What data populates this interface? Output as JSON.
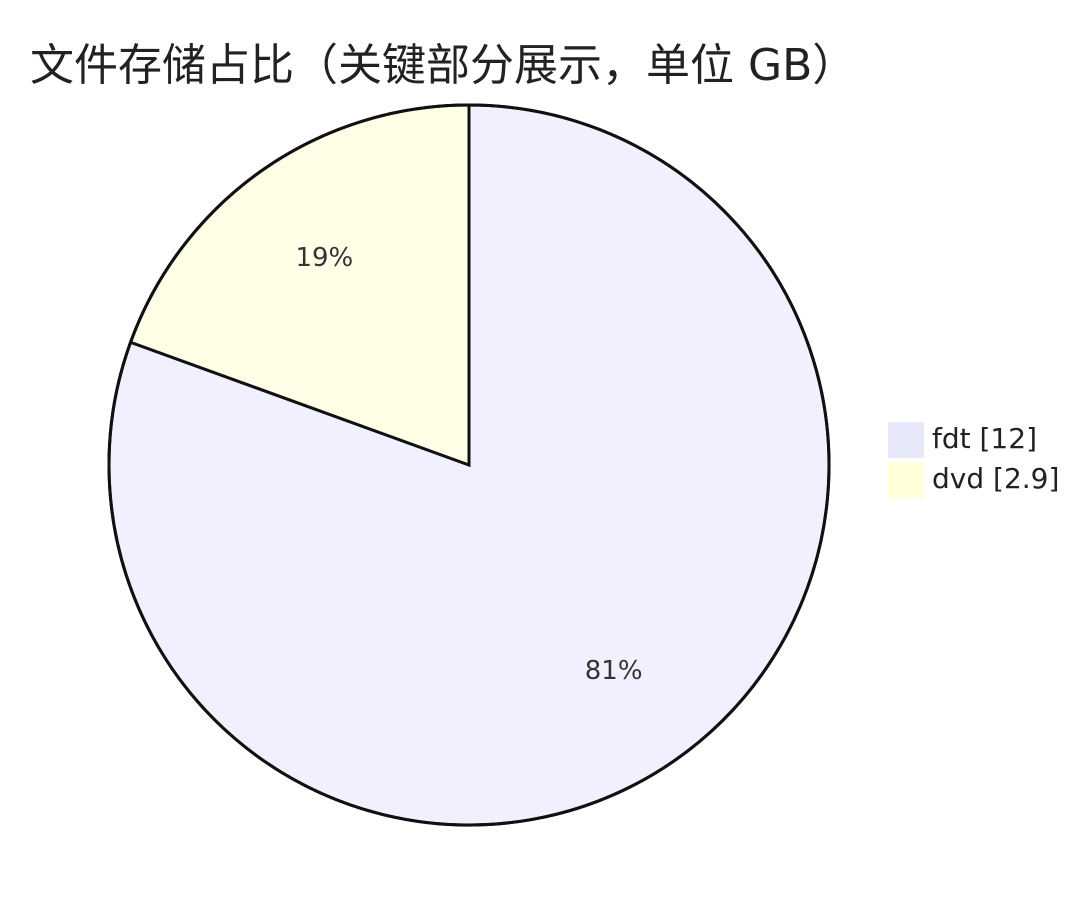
{
  "chart_data": {
    "type": "pie",
    "title": "文件存储占比（关键部分展示，单位 GB）",
    "slices": [
      {
        "label": "fdt",
        "value": 12,
        "percent_label": "81%",
        "color": "#f0f0ff"
      },
      {
        "label": "dvd",
        "value": 2.9,
        "percent_label": "19%",
        "color": "#ffffe8"
      }
    ],
    "legend": {
      "placement": "right",
      "entries": [
        {
          "text": "fdt [12]",
          "color": "#e8e8fb"
        },
        {
          "text": "dvd [2.9]",
          "color": "#ffffd8"
        }
      ]
    }
  }
}
